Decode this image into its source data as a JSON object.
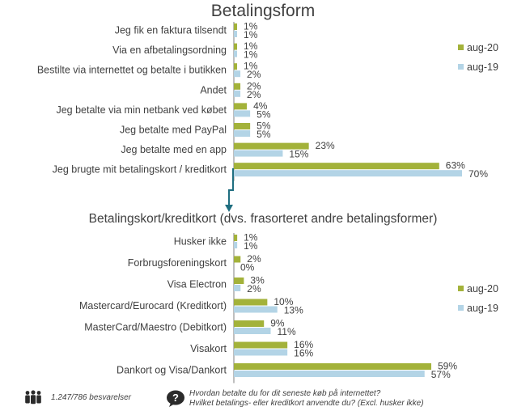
{
  "colors": {
    "aug20": "#a3b23a",
    "aug19": "#b3d4e6",
    "axis": "#7f7f7f",
    "arrow": "#1f6e80"
  },
  "chart_data": [
    {
      "type": "bar",
      "orientation": "horizontal",
      "title": "Betalingsform",
      "categories": [
        "Jeg fik en faktura tilsendt",
        "Via en afbetalingsordning",
        "Bestilte via internettet og betalte i butikken",
        "Andet",
        "Jeg betalte via min netbank ved købet",
        "Jeg betalte med PayPal",
        "Jeg betalte med en app",
        "Jeg brugte mit betalingskort / kreditkort"
      ],
      "series": [
        {
          "name": "aug-20",
          "values": [
            1,
            1,
            1,
            2,
            4,
            5,
            23,
            63
          ]
        },
        {
          "name": "aug-19",
          "values": [
            1,
            1,
            2,
            2,
            5,
            5,
            15,
            70
          ]
        }
      ],
      "value_labels": {
        "aug-20": [
          "1%",
          "1%",
          "1%",
          "2%",
          "4%",
          "5%",
          "23%",
          "63%"
        ],
        "aug-19": [
          "1%",
          "1%",
          "2%",
          "2%",
          "5%",
          "5%",
          "15%",
          "70%"
        ]
      },
      "legend": [
        "aug-20",
        "aug-19"
      ],
      "legend_position": "right"
    },
    {
      "type": "bar",
      "orientation": "horizontal",
      "title": "Betalingskort/kreditkort (dvs. frasorteret andre betalingsformer)",
      "categories": [
        "Husker ikke",
        "Forbrugsforeningskort",
        "Visa Electron",
        "Mastercard/Eurocard (Kreditkort)",
        "MasterCard/Maestro (Debitkort)",
        "Visakort",
        "Dankort og Visa/Dankort"
      ],
      "series": [
        {
          "name": "aug-20",
          "values": [
            1,
            2,
            3,
            10,
            9,
            16,
            59
          ]
        },
        {
          "name": "aug-19",
          "values": [
            1,
            0,
            2,
            13,
            11,
            16,
            57
          ]
        }
      ],
      "value_labels": {
        "aug-20": [
          "1%",
          "2%",
          "3%",
          "10%",
          "9%",
          "16%",
          "59%"
        ],
        "aug-19": [
          "1%",
          "0%",
          "2%",
          "13%",
          "11%",
          "16%",
          "57%"
        ]
      },
      "legend": [
        "aug-20",
        "aug-19"
      ],
      "legend_position": "right"
    }
  ],
  "footer": {
    "respondents": "1.247/786 besvarelser",
    "question_line1": "Hvordan betalte du for dit seneste køb på internettet?",
    "question_line2": "Hvilket betalings- eller kreditkort anvendte du? (Excl. husker ikke)",
    "people_icon": "people-icon",
    "question_icon": "question-bubble-icon"
  }
}
